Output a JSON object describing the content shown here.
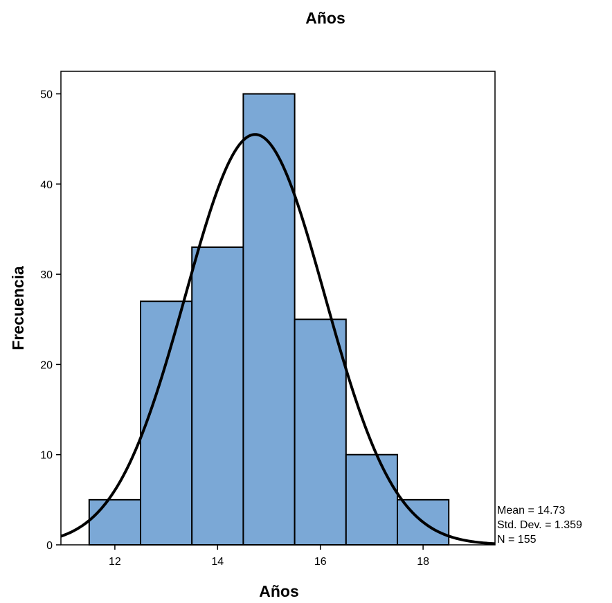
{
  "chart_data": {
    "type": "bar",
    "title": "Años",
    "xlabel": "Años",
    "ylabel": "Frecuencia",
    "bins": [
      {
        "x0": 11.5,
        "x1": 12.5,
        "value": 5
      },
      {
        "x0": 12.5,
        "x1": 13.5,
        "value": 27
      },
      {
        "x0": 13.5,
        "x1": 14.5,
        "value": 33
      },
      {
        "x0": 14.5,
        "x1": 15.5,
        "value": 50
      },
      {
        "x0": 15.5,
        "x1": 16.5,
        "value": 25
      },
      {
        "x0": 16.5,
        "x1": 17.5,
        "value": 10
      },
      {
        "x0": 17.5,
        "x1": 18.5,
        "value": 5
      }
    ],
    "xlim": [
      10.95,
      19.4
    ],
    "ylim": [
      0,
      52.5
    ],
    "xticks": [
      12,
      14,
      16,
      18
    ],
    "yticks": [
      0,
      10,
      20,
      30,
      40,
      50
    ],
    "normal_curve": {
      "mean": 14.73,
      "std": 1.359,
      "n": 155,
      "bin_width": 1
    },
    "stats": [
      "Mean = 14.73",
      "Std. Dev. = 1.359",
      "N = 155"
    ],
    "bar_color": "#7ba8d6",
    "bar_edge_color": "#000000",
    "curve_color": "#000000",
    "grid": false
  }
}
